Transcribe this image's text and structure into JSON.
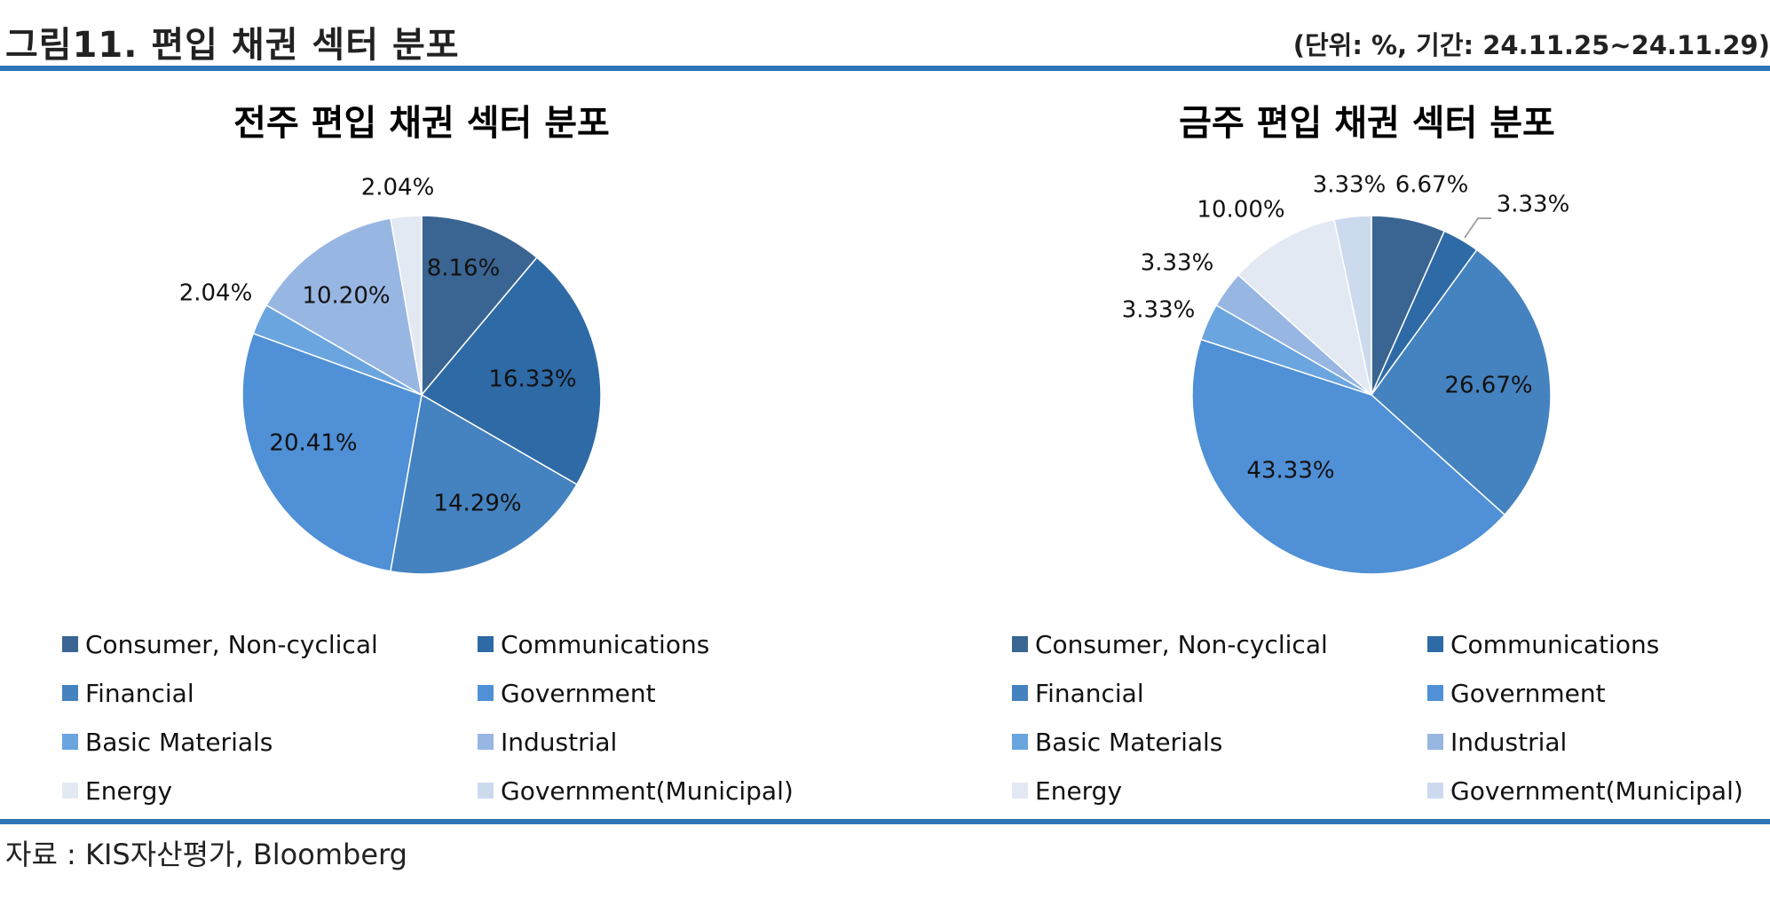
{
  "header": {
    "title": "그림11. 편입 채권 섹터 분포",
    "unit_period": "(단위: %, 기간: 24.11.25~24.11.29)"
  },
  "legend_categories": [
    "Consumer, Non-cyclical",
    "Communications",
    "Financial",
    "Government",
    "Basic Materials",
    "Industrial",
    "Energy",
    "Government(Municipal)"
  ],
  "colors": [
    "#3a6592",
    "#2e6aa6",
    "#4582c0",
    "#4f90d6",
    "#6aa5e0",
    "#98b6e2",
    "#e3e9f2",
    "#ccdaee"
  ],
  "chart_data": [
    {
      "type": "pie",
      "title": "전주 편입 채권 섹터 분포",
      "series": [
        {
          "labels": [
            "Consumer, Non-cyclical",
            "Communications",
            "Financial",
            "Government",
            "Basic Materials",
            "Industrial",
            "Energy"
          ],
          "values": [
            8.16,
            16.33,
            14.29,
            20.41,
            2.04,
            10.2,
            2.04
          ],
          "value_labels": [
            "8.16%",
            "16.33%",
            "14.29%",
            "20.41%",
            "2.04%",
            "10.20%",
            "2.04%"
          ]
        }
      ],
      "legend": "bottom"
    },
    {
      "type": "pie",
      "title": "금주 편입 채권 섹터 분포",
      "series": [
        {
          "labels": [
            "Consumer, Non-cyclical",
            "Communications",
            "Financial",
            "Government",
            "Basic Materials",
            "Industrial",
            "Energy",
            "Government(Municipal)"
          ],
          "values": [
            6.67,
            3.33,
            26.67,
            43.33,
            3.33,
            3.33,
            10.0,
            3.33
          ],
          "value_labels": [
            "6.67%",
            "3.33%",
            "26.67%",
            "43.33%",
            "3.33%",
            "3.33%",
            "10.00%",
            "3.33%"
          ]
        }
      ],
      "legend": "bottom"
    }
  ],
  "source": "자료 : KIS자산평가, Bloomberg"
}
